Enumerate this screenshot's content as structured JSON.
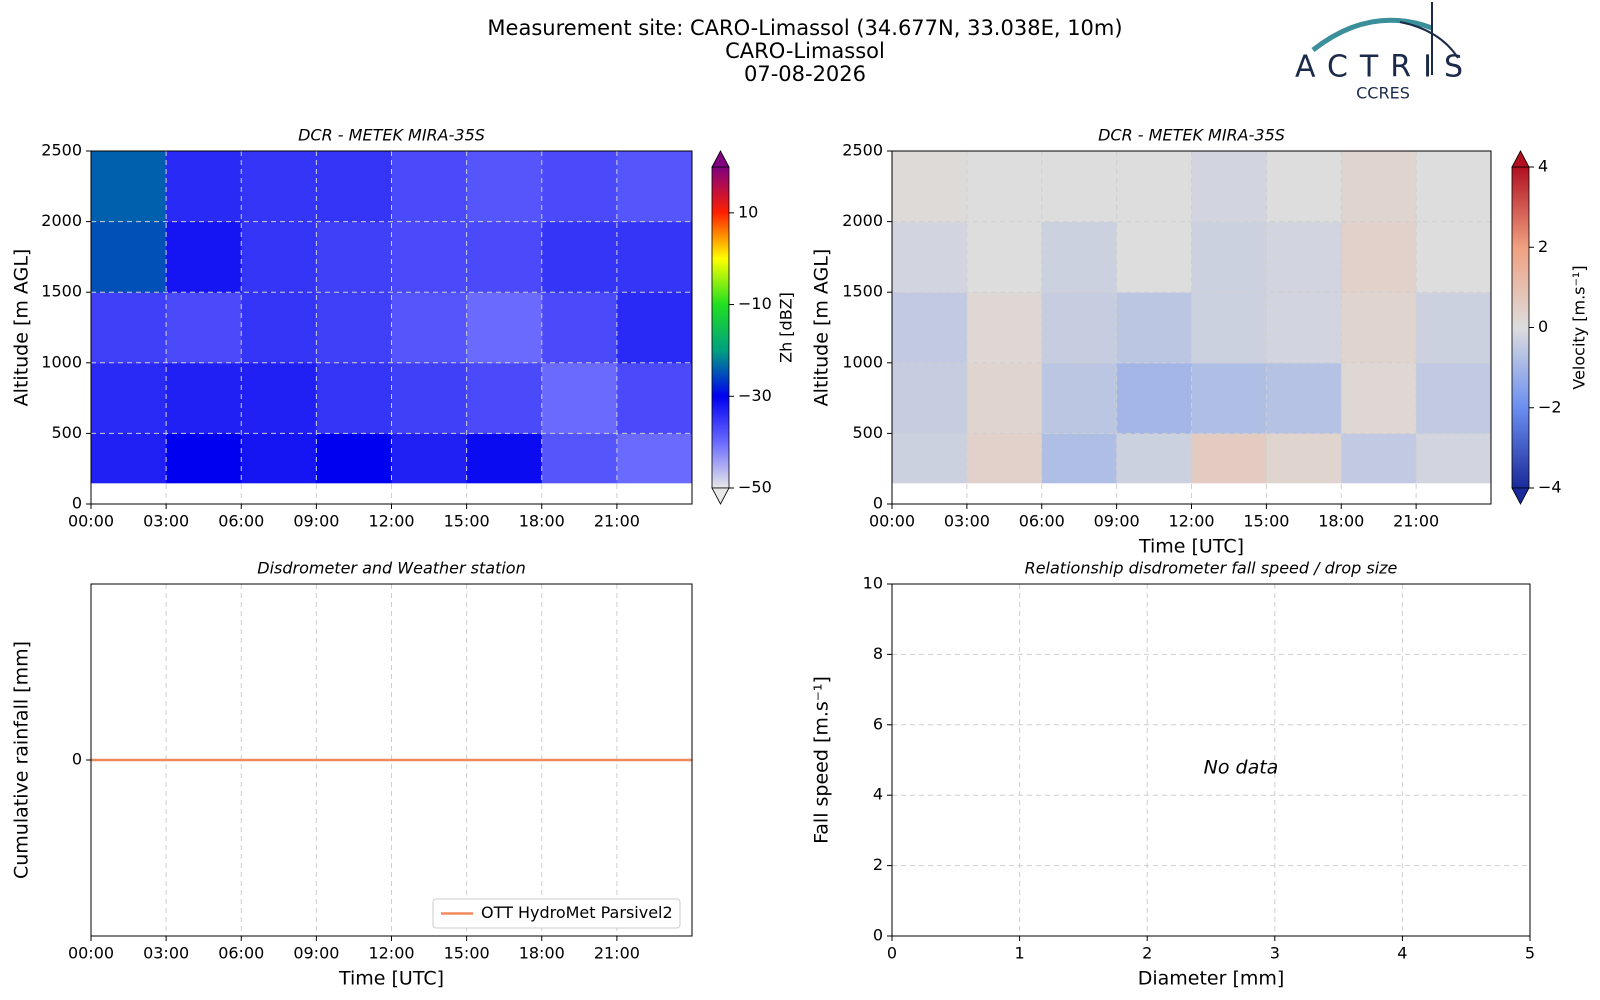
{
  "header": {
    "title": "Measurement site: CARO-Limassol (34.677N, 33.038E, 10m)",
    "subtitle": "CARO-Limassol",
    "date": "07-08-2026"
  },
  "logo": {
    "name": "ACTRIS",
    "subtitle": "CCRES"
  },
  "chart_data": [
    {
      "type": "heatmap",
      "title": "DCR - METEK MIRA-35S",
      "y_label": "Altitude [m AGL]",
      "xlim": [
        0,
        24
      ],
      "xticks": [
        {
          "value": 0,
          "label": "00:00"
        },
        {
          "value": 3,
          "label": "03:00"
        },
        {
          "value": 6,
          "label": "06:00"
        },
        {
          "value": 9,
          "label": "09:00"
        },
        {
          "value": 12,
          "label": "12:00"
        },
        {
          "value": 15,
          "label": "15:00"
        },
        {
          "value": 18,
          "label": "18:00"
        },
        {
          "value": 21,
          "label": "21:00"
        }
      ],
      "ylim": [
        0,
        2500
      ],
      "yticks": [
        0,
        500,
        1000,
        1500,
        2000,
        2500
      ],
      "grid": true,
      "x_edges": [
        0,
        3,
        6,
        9,
        12,
        15,
        18,
        21,
        24
      ],
      "y_edges": [
        150,
        500,
        1000,
        1500,
        2000,
        2500
      ],
      "z": [
        [
          -33,
          -30,
          -32,
          -30,
          -33,
          -31,
          -38,
          -40
        ],
        [
          -34,
          -33,
          -33,
          -35,
          -36,
          -37,
          -40,
          -37
        ],
        [
          -36,
          -37,
          -35,
          -36,
          -38,
          -40,
          -37,
          -34
        ],
        [
          -25,
          -32,
          -35,
          -36,
          -37,
          -37,
          -35,
          -35
        ],
        [
          -24,
          -34,
          -35,
          -35,
          -37,
          -38,
          -37,
          -38
        ]
      ],
      "zlim": [
        -50,
        20
      ],
      "zticks": [
        {
          "value": -50,
          "label": "−50"
        },
        {
          "value": -30,
          "label": "−30"
        },
        {
          "value": -10,
          "label": "−10"
        },
        10
      ],
      "colorbar_label": "Zh [dBZ]",
      "colormap": [
        "#e8e8e8",
        "#6a6aff",
        "#0000f0",
        "#00a080",
        "#20e020",
        "#ffff00",
        "#ff2000",
        "#800080"
      ]
    },
    {
      "type": "heatmap",
      "title": "DCR - METEK MIRA-35S",
      "y_label": "Altitude [m AGL]",
      "x_label": "Time [UTC]",
      "xlim": [
        0,
        24
      ],
      "xticks": [
        {
          "value": 0,
          "label": "00:00"
        },
        {
          "value": 3,
          "label": "03:00"
        },
        {
          "value": 6,
          "label": "06:00"
        },
        {
          "value": 9,
          "label": "09:00"
        },
        {
          "value": 12,
          "label": "12:00"
        },
        {
          "value": 15,
          "label": "15:00"
        },
        {
          "value": 18,
          "label": "18:00"
        },
        {
          "value": 21,
          "label": "21:00"
        }
      ],
      "ylim": [
        0,
        2500
      ],
      "yticks": [
        0,
        500,
        1000,
        1500,
        2000,
        2500
      ],
      "grid": true,
      "x_edges": [
        0,
        3,
        6,
        9,
        12,
        15,
        18,
        21,
        24
      ],
      "y_edges": [
        150,
        500,
        1000,
        1500,
        2000,
        2500
      ],
      "z": [
        [
          -0.3,
          0.4,
          -0.8,
          -0.3,
          0.6,
          0.3,
          -0.5,
          -0.2
        ],
        [
          -0.4,
          0.3,
          -0.6,
          -1.0,
          -0.8,
          -0.7,
          0.2,
          -0.5
        ],
        [
          -0.5,
          0.2,
          -0.4,
          -0.6,
          -0.3,
          -0.2,
          0.3,
          -0.3
        ],
        [
          -0.2,
          0,
          -0.3,
          0,
          -0.3,
          -0.2,
          0.4,
          0
        ],
        [
          0.1,
          0,
          0,
          0,
          -0.2,
          0,
          0.3,
          0
        ]
      ],
      "zlim": [
        -4,
        4
      ],
      "zticks": [
        {
          "value": -4,
          "label": "−4"
        },
        {
          "value": -2,
          "label": "−2"
        },
        0,
        2,
        4
      ],
      "colorbar_label": "Velocity [m.s⁻¹]",
      "colormap": [
        "#1a2a9a",
        "#6b8ff0",
        "#dddddd",
        "#f0a080",
        "#b01020"
      ]
    },
    {
      "type": "line",
      "title": "Disdrometer and Weather station",
      "y_label": "Cumulative rainfall [mm]",
      "x_label": "Time [UTC]",
      "xlim": [
        0,
        24
      ],
      "xticks": [
        {
          "value": 0,
          "label": "00:00"
        },
        {
          "value": 3,
          "label": "03:00"
        },
        {
          "value": 6,
          "label": "06:00"
        },
        {
          "value": 9,
          "label": "09:00"
        },
        {
          "value": 12,
          "label": "12:00"
        },
        {
          "value": 15,
          "label": "15:00"
        },
        {
          "value": 18,
          "label": "18:00"
        },
        {
          "value": 21,
          "label": "21:00"
        }
      ],
      "ylim": [
        -1,
        1
      ],
      "yticks": [
        0
      ],
      "grid": true,
      "legend": "lower right",
      "series": [
        {
          "name": "OTT HydroMet Parsivel2",
          "color": "#f08a5d",
          "x": [
            0,
            24
          ],
          "values": [
            0,
            0
          ]
        }
      ]
    },
    {
      "type": "scatter",
      "title": "Relationship disdrometer fall speed / drop size",
      "y_label": "Fall speed [m.s⁻¹]",
      "x_label": "Diameter [mm]",
      "xlim": [
        0,
        5
      ],
      "xticks": [
        0,
        1,
        2,
        3,
        4,
        5
      ],
      "ylim": [
        0,
        10
      ],
      "yticks": [
        0,
        2,
        4,
        6,
        8,
        10
      ],
      "grid": true,
      "annotation": "No data"
    }
  ]
}
